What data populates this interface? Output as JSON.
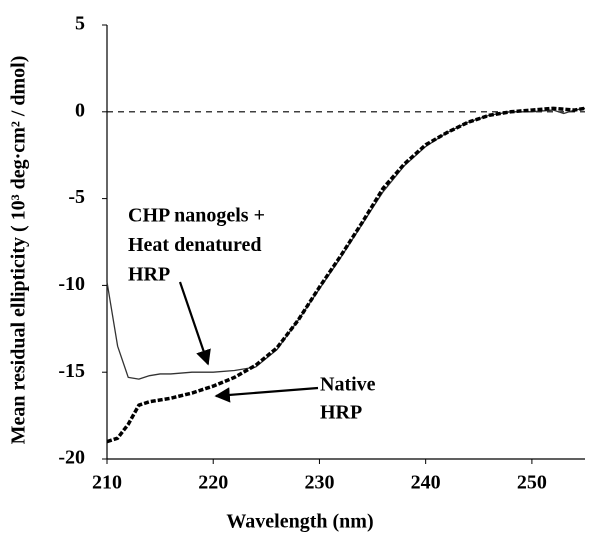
{
  "chart_data": {
    "type": "line",
    "x_label": "Wavelength (nm)",
    "y_label": "Mean residual ellipticity ( 10³ deg·cm² / dmol)",
    "xlim": [
      210,
      255
    ],
    "xticks": [
      210,
      220,
      230,
      240,
      250
    ],
    "ylim": [
      -20,
      5
    ],
    "yticks": [
      -20,
      -15,
      -10,
      -5,
      0,
      5
    ],
    "zero_line": true,
    "series": [
      {
        "color": "#333333",
        "style": "solid",
        "x": [
          210,
          211,
          212,
          213,
          214,
          215,
          216,
          218,
          220,
          222,
          224,
          226,
          228,
          230,
          232,
          234,
          236,
          238,
          240,
          242,
          244,
          246,
          248,
          250,
          252,
          253,
          254,
          255
        ],
        "values": [
          -9.8,
          -13.5,
          -15.3,
          -15.4,
          -15.2,
          -15.1,
          -15.1,
          -15.0,
          -15.0,
          -14.9,
          -14.7,
          -13.7,
          -12.0,
          -10.2,
          -8.4,
          -6.5,
          -4.6,
          -3.1,
          -2.0,
          -1.2,
          -0.6,
          -0.2,
          0.0,
          0.0,
          0.1,
          -0.1,
          0.1,
          0.2
        ]
      },
      {
        "color": "#000000",
        "style": "dashed",
        "x": [
          210,
          211,
          212,
          213,
          214,
          216,
          218,
          220,
          222,
          224,
          226,
          228,
          230,
          232,
          234,
          236,
          238,
          240,
          242,
          244,
          246,
          248,
          250,
          252,
          254,
          255
        ],
        "values": [
          -19.0,
          -18.8,
          -18.0,
          -16.9,
          -16.7,
          -16.5,
          -16.2,
          -15.8,
          -15.3,
          -14.6,
          -13.6,
          -12.0,
          -10.1,
          -8.3,
          -6.4,
          -4.4,
          -3.0,
          -1.9,
          -1.2,
          -0.6,
          -0.2,
          0.0,
          0.1,
          0.2,
          0.1,
          0.2
        ]
      }
    ],
    "annotations": [
      {
        "lines": [
          "CHP nanogels +",
          "Heat denatured",
          "HRP"
        ]
      },
      {
        "lines": [
          "Native",
          "HRP"
        ]
      }
    ]
  }
}
